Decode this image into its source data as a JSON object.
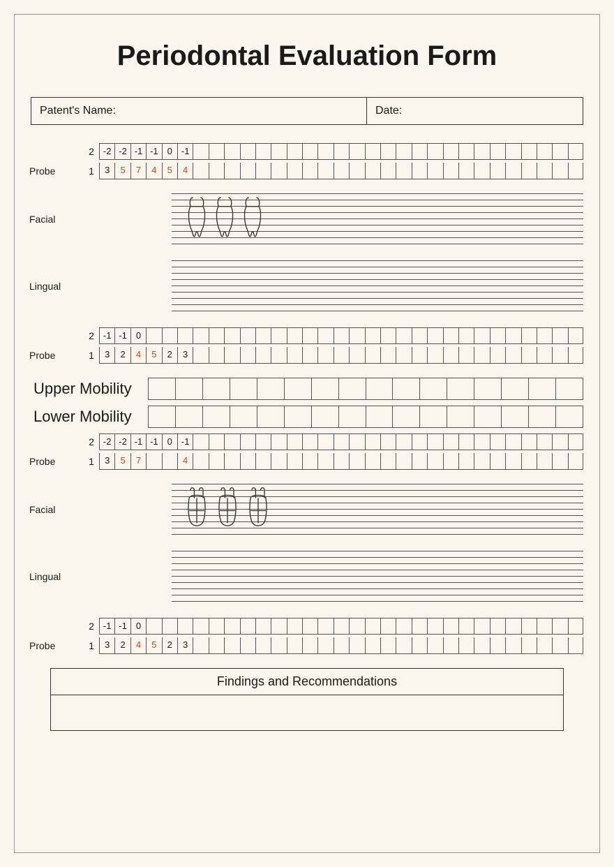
{
  "title": "Periodontal Evaluation Form",
  "header": {
    "name_label": "Patent's Name:",
    "date_label": "Date:"
  },
  "labels": {
    "probe": "Probe",
    "row2": "2",
    "row1": "1",
    "facial": "Facial",
    "lingual": "Lingual",
    "upper_mobility": "Upper Mobility",
    "lower_mobility": "Lower Mobility",
    "findings": "Findings and Recommendations"
  },
  "colors": {
    "highlight": "#d84315",
    "line": "#555555",
    "bg": "#faf6ed"
  },
  "grid_columns": 31,
  "mobility_columns": 16,
  "probe_sections": [
    {
      "row2": [
        {
          "v": "-2"
        },
        {
          "v": "-2"
        },
        {
          "v": "-1"
        },
        {
          "v": "-1"
        },
        {
          "v": "0"
        },
        {
          "v": "-1"
        }
      ],
      "row1": [
        {
          "v": "3"
        },
        {
          "v": "5",
          "hl": true
        },
        {
          "v": "7",
          "hl": true
        },
        {
          "v": "4",
          "hl": true
        },
        {
          "v": "5",
          "hl": true
        },
        {
          "v": "4",
          "hl": true
        }
      ]
    },
    {
      "row2": [
        {
          "v": "-1"
        },
        {
          "v": "-1"
        },
        {
          "v": "0"
        }
      ],
      "row1": [
        {
          "v": "3"
        },
        {
          "v": "2"
        },
        {
          "v": "4",
          "hl": true
        },
        {
          "v": "5",
          "hl": true
        },
        {
          "v": "2"
        },
        {
          "v": "3"
        }
      ]
    },
    {
      "row2": [
        {
          "v": "-2"
        },
        {
          "v": "-2"
        },
        {
          "v": "-1"
        },
        {
          "v": "-1"
        },
        {
          "v": "0"
        },
        {
          "v": "-1"
        }
      ],
      "row1": [
        {
          "v": "3"
        },
        {
          "v": "5",
          "hl": true
        },
        {
          "v": "7",
          "hl": true
        },
        {
          "v": ""
        },
        {
          "v": ""
        },
        {
          "v": "4",
          "hl": true
        }
      ]
    },
    {
      "row2": [
        {
          "v": "-1"
        },
        {
          "v": "-1"
        },
        {
          "v": "0"
        }
      ],
      "row1": [
        {
          "v": "3"
        },
        {
          "v": "2"
        },
        {
          "v": "4",
          "hl": true
        },
        {
          "v": "5",
          "hl": true
        },
        {
          "v": "2"
        },
        {
          "v": "3"
        }
      ]
    }
  ],
  "line_positions": [
    0,
    9,
    18,
    27,
    36,
    45,
    54,
    63,
    72
  ],
  "tooth_positions": {
    "upper": [
      18,
      58,
      98
    ],
    "lower": [
      18,
      62,
      106
    ]
  }
}
